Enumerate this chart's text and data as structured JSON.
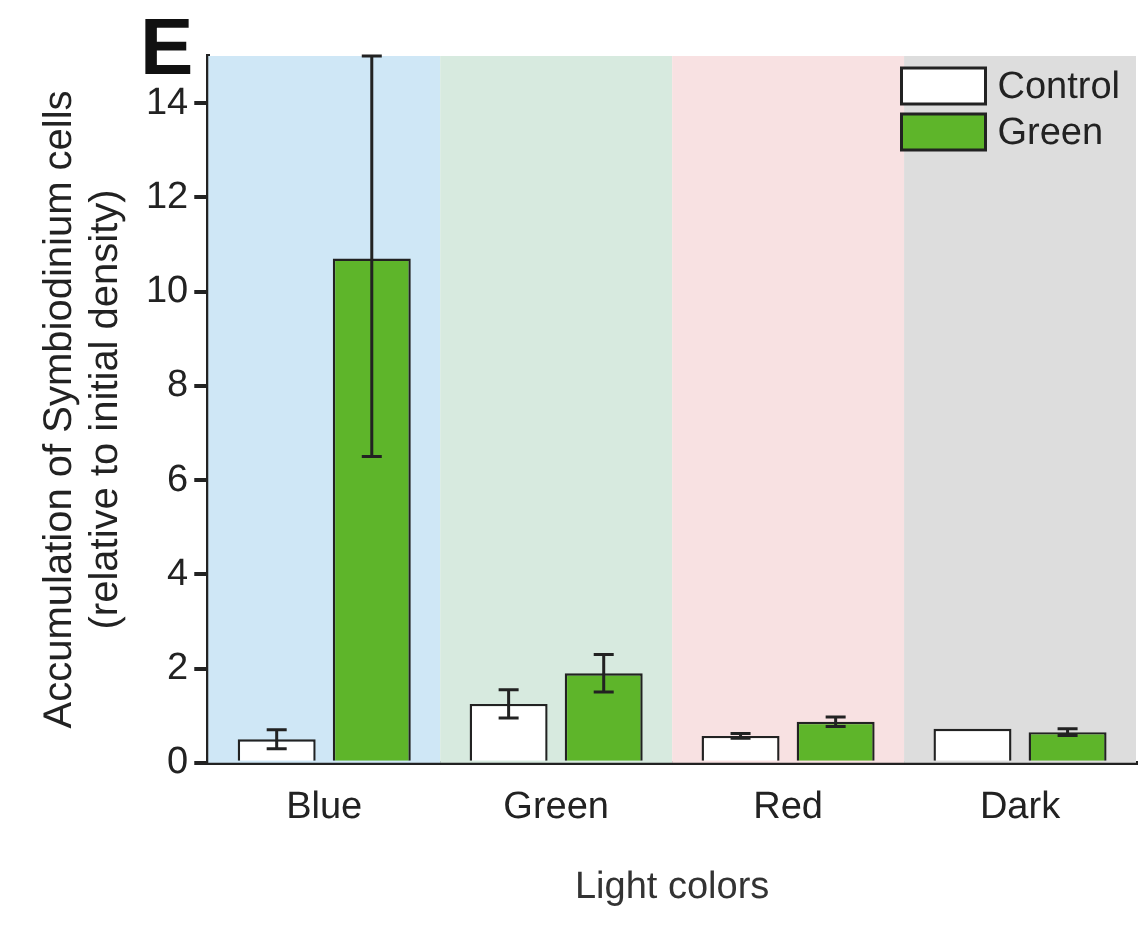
{
  "chart_data": {
    "type": "bar",
    "title": "E",
    "xlabel": "Light colors",
    "ylabel": "Accumulation of Symbiodinium cells (relative to initial density)",
    "categories": [
      "Blue",
      "Green",
      "Red",
      "Dark"
    ],
    "series": [
      {
        "name": "Control",
        "color": "#ffffff",
        "values": [
          0.5,
          1.25,
          0.57,
          0.72
        ],
        "errors": [
          0.2,
          0.3,
          0.05,
          null
        ]
      },
      {
        "name": "Green",
        "color": "#5eb52a",
        "values": [
          10.7,
          1.9,
          0.87,
          0.65
        ],
        "errors": [
          [
            6.5,
            15
          ],
          0.4,
          0.1,
          0.07
        ]
      }
    ],
    "ylim": [
      0,
      15
    ],
    "yticks": [
      0,
      2,
      4,
      6,
      8,
      10,
      12,
      14
    ],
    "grid": false,
    "legend": "top right",
    "bands": [
      {
        "axis": "x",
        "from": "Blue",
        "to": "Blue",
        "color": "#cfe7f6"
      },
      {
        "axis": "x",
        "from": "Green",
        "to": "Green",
        "color": "#d7eadf"
      },
      {
        "axis": "x",
        "from": "Red",
        "to": "Red",
        "color": "#f8e1e2"
      },
      {
        "axis": "x",
        "from": "Dark",
        "to": "Dark",
        "color": "#dddddd"
      }
    ]
  }
}
